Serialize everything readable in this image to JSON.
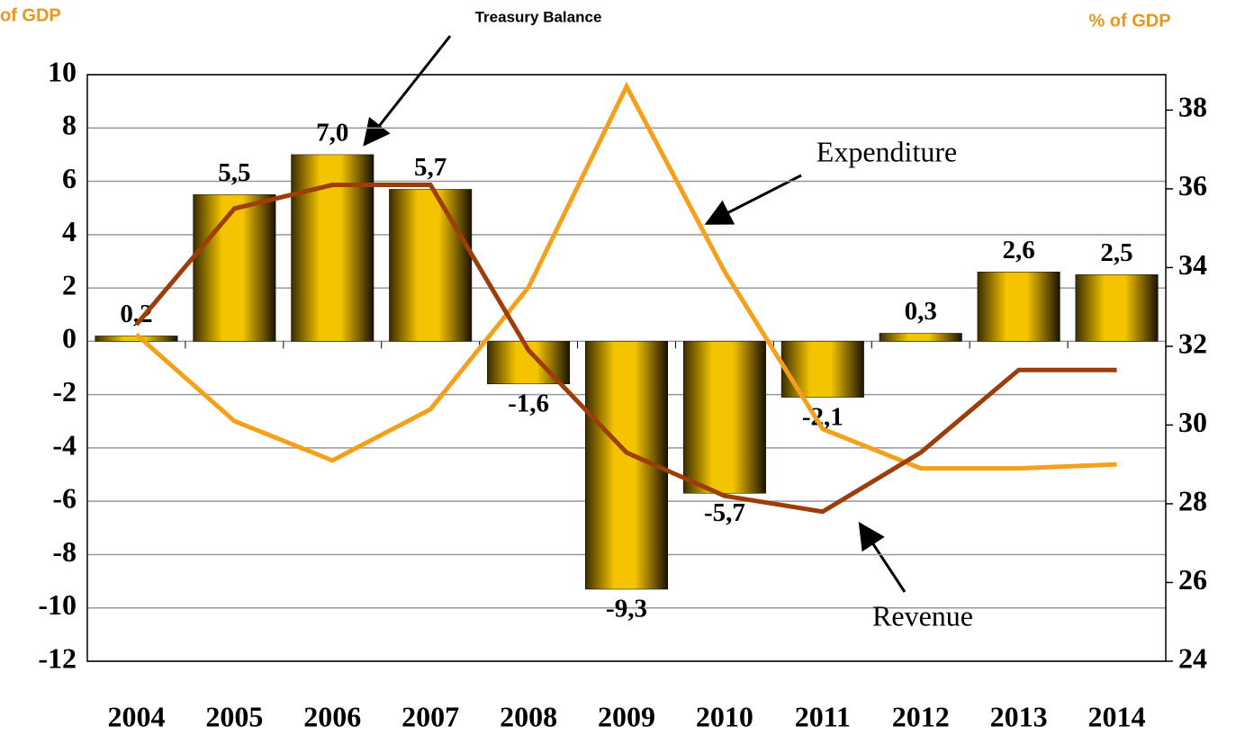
{
  "chart_data": {
    "type": "bar",
    "title": "Treasury Balance",
    "y_label": "of GDP",
    "y2_label": "% of GDP",
    "categories": [
      "2004",
      "2005",
      "2006",
      "2007",
      "2008",
      "2009",
      "2010",
      "2011",
      "2012",
      "2013",
      "2014"
    ],
    "series": [
      {
        "name": "Treasury Balance",
        "type": "bar",
        "color": "#f5c400",
        "values": [
          0.2,
          5.5,
          7.0,
          5.7,
          -1.6,
          -9.3,
          -5.7,
          -2.1,
          0.3,
          2.6,
          2.5
        ],
        "value_labels": [
          "0,2",
          "5,5",
          "7,0",
          "5,7",
          "-1,6",
          "-9,3",
          "-5,7",
          "-2,1",
          "0,3",
          "2,6",
          "2,5"
        ]
      },
      {
        "name": "Expenditure",
        "type": "line",
        "axis": "y2",
        "color": "#f5a01a",
        "values": [
          32.3,
          30.1,
          29.1,
          30.4,
          33.5,
          38.6,
          33.9,
          29.9,
          28.9,
          28.9,
          29.0
        ]
      },
      {
        "name": "Revenue",
        "type": "line",
        "axis": "y2",
        "color": "#9c3d0a",
        "values": [
          32.55,
          35.5,
          36.1,
          36.1,
          31.9,
          29.3,
          28.2,
          27.8,
          29.3,
          31.4,
          31.4
        ]
      }
    ],
    "ylim": [
      -12,
      10
    ],
    "yticks": [
      10,
      8,
      6,
      4,
      2,
      0,
      -2,
      -4,
      -6,
      -8,
      -10,
      -12
    ],
    "y2lim": [
      24,
      38.9
    ],
    "y2ticks": [
      38,
      36,
      34,
      32,
      30,
      28,
      26,
      24
    ],
    "grid": true
  }
}
